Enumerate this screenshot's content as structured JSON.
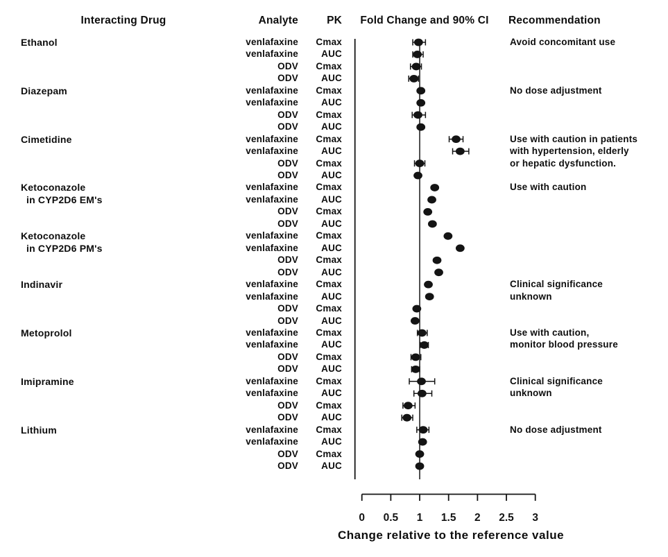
{
  "page": {
    "background": "#ffffff",
    "text_color": "#0d0d0d",
    "accent_color": "#111111"
  },
  "header": {
    "interacting_drug": "Interacting Drug",
    "analyte": "Analyte",
    "pk": "PK",
    "fold_change": "Fold Change and 90% CI",
    "recommendation": "Recommendation"
  },
  "x_axis": {
    "label": "Change relative to the reference value",
    "tick_labels": [
      "0",
      "0.5",
      "1",
      "1.5",
      "2",
      "2.5",
      "3"
    ],
    "tick_values": [
      0,
      0.5,
      1,
      1.5,
      2,
      2.5,
      3
    ],
    "min": 0,
    "max": 3,
    "reference_value": 1
  },
  "chart_data": {
    "type": "scatter",
    "subtype": "forest-plot-with-90pct-CI",
    "title": "PK Fold Change and 90% CI",
    "xlabel": "Change relative to the reference value",
    "xlim": [
      0,
      3
    ],
    "xticks": [
      0,
      0.5,
      1,
      1.5,
      2,
      2.5,
      3
    ],
    "reference_line_x": 1,
    "grid": false,
    "groups": [
      {
        "drug": "Ethanol",
        "drug_line2": null,
        "recommendation": [
          "Avoid concomitant use"
        ],
        "rows": [
          {
            "analyte": "venlafaxine",
            "pk": "Cmax",
            "value": 0.98,
            "ci": [
              0.88,
              1.1
            ]
          },
          {
            "analyte": "venlafaxine",
            "pk": "AUC",
            "value": 0.96,
            "ci": [
              0.88,
              1.06
            ]
          },
          {
            "analyte": "ODV",
            "pk": "Cmax",
            "value": 0.94,
            "ci": [
              0.84,
              1.03
            ]
          },
          {
            "analyte": "ODV",
            "pk": "AUC",
            "value": 0.9,
            "ci": [
              0.81,
              0.98
            ]
          }
        ]
      },
      {
        "drug": "Diazepam",
        "drug_line2": null,
        "recommendation": [
          "No dose adjustment"
        ],
        "rows": [
          {
            "analyte": "venlafaxine",
            "pk": "Cmax",
            "value": 1.02,
            "ci": null
          },
          {
            "analyte": "venlafaxine",
            "pk": "AUC",
            "value": 1.02,
            "ci": null
          },
          {
            "analyte": "ODV",
            "pk": "Cmax",
            "value": 0.97,
            "ci": [
              0.87,
              1.1
            ]
          },
          {
            "analyte": "ODV",
            "pk": "AUC",
            "value": 1.02,
            "ci": null
          }
        ]
      },
      {
        "drug": "Cimetidine",
        "drug_line2": null,
        "recommendation": [
          "Use with caution in patients",
          "with hypertension, elderly",
          "or hepatic dysfunction."
        ],
        "rows": [
          {
            "analyte": "venlafaxine",
            "pk": "Cmax",
            "value": 1.63,
            "ci": [
              1.51,
              1.75
            ]
          },
          {
            "analyte": "venlafaxine",
            "pk": "AUC",
            "value": 1.7,
            "ci": [
              1.57,
              1.85
            ]
          },
          {
            "analyte": "ODV",
            "pk": "Cmax",
            "value": 1.0,
            "ci": [
              0.91,
              1.09
            ]
          },
          {
            "analyte": "ODV",
            "pk": "AUC",
            "value": 0.97,
            "ci": null
          }
        ]
      },
      {
        "drug": "Ketoconazole",
        "drug_line2": "in CYP2D6 EM's",
        "recommendation": [
          "Use with caution"
        ],
        "rows": [
          {
            "analyte": "venlafaxine",
            "pk": "Cmax",
            "value": 1.26,
            "ci": null
          },
          {
            "analyte": "venlafaxine",
            "pk": "AUC",
            "value": 1.21,
            "ci": null
          },
          {
            "analyte": "ODV",
            "pk": "Cmax",
            "value": 1.14,
            "ci": null
          },
          {
            "analyte": "ODV",
            "pk": "AUC",
            "value": 1.22,
            "ci": null
          }
        ]
      },
      {
        "drug": "Ketoconazole",
        "drug_line2": "in CYP2D6 PM's",
        "recommendation": [],
        "rows": [
          {
            "analyte": "venlafaxine",
            "pk": "Cmax",
            "value": 1.49,
            "ci": null
          },
          {
            "analyte": "venlafaxine",
            "pk": "AUC",
            "value": 1.7,
            "ci": null
          },
          {
            "analyte": "ODV",
            "pk": "Cmax",
            "value": 1.3,
            "ci": null
          },
          {
            "analyte": "ODV",
            "pk": "AUC",
            "value": 1.33,
            "ci": null
          }
        ]
      },
      {
        "drug": "Indinavir",
        "drug_line2": null,
        "recommendation": [
          "Clinical significance",
          "unknown"
        ],
        "rows": [
          {
            "analyte": "venlafaxine",
            "pk": "Cmax",
            "value": 1.15,
            "ci": null
          },
          {
            "analyte": "venlafaxine",
            "pk": "AUC",
            "value": 1.17,
            "ci": null
          },
          {
            "analyte": "ODV",
            "pk": "Cmax",
            "value": 0.95,
            "ci": null
          },
          {
            "analyte": "ODV",
            "pk": "AUC",
            "value": 0.92,
            "ci": null
          }
        ]
      },
      {
        "drug": "Metoprolol",
        "drug_line2": null,
        "recommendation": [
          "Use with caution,",
          "monitor blood pressure"
        ],
        "rows": [
          {
            "analyte": "venlafaxine",
            "pk": "Cmax",
            "value": 1.04,
            "ci": [
              0.96,
              1.13
            ]
          },
          {
            "analyte": "venlafaxine",
            "pk": "AUC",
            "value": 1.08,
            "ci": [
              1.01,
              1.15
            ]
          },
          {
            "analyte": "ODV",
            "pk": "Cmax",
            "value": 0.93,
            "ci": [
              0.85,
              1.02
            ]
          },
          {
            "analyte": "ODV",
            "pk": "AUC",
            "value": 0.93,
            "ci": [
              0.86,
              1.0
            ]
          }
        ]
      },
      {
        "drug": "Imipramine",
        "drug_line2": null,
        "recommendation": [
          "Clinical significance",
          "unknown"
        ],
        "rows": [
          {
            "analyte": "venlafaxine",
            "pk": "Cmax",
            "value": 1.03,
            "ci": [
              0.82,
              1.26
            ]
          },
          {
            "analyte": "venlafaxine",
            "pk": "AUC",
            "value": 1.04,
            "ci": [
              0.9,
              1.21
            ]
          },
          {
            "analyte": "ODV",
            "pk": "Cmax",
            "value": 0.8,
            "ci": [
              0.71,
              0.92
            ]
          },
          {
            "analyte": "ODV",
            "pk": "AUC",
            "value": 0.78,
            "ci": [
              0.69,
              0.88
            ]
          }
        ]
      },
      {
        "drug": "Lithium",
        "drug_line2": null,
        "recommendation": [
          "No dose adjustment"
        ],
        "rows": [
          {
            "analyte": "venlafaxine",
            "pk": "Cmax",
            "value": 1.06,
            "ci": [
              0.95,
              1.16
            ]
          },
          {
            "analyte": "venlafaxine",
            "pk": "AUC",
            "value": 1.05,
            "ci": null
          },
          {
            "analyte": "ODV",
            "pk": "Cmax",
            "value": 1.0,
            "ci": null
          },
          {
            "analyte": "ODV",
            "pk": "AUC",
            "value": 1.0,
            "ci": null
          }
        ]
      }
    ]
  }
}
